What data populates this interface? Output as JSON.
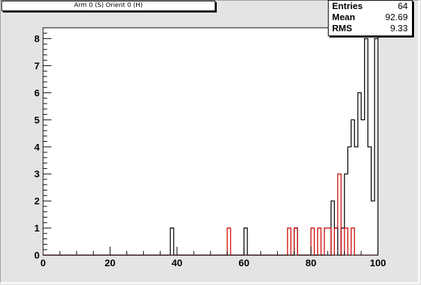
{
  "title": "Arm 0 (S) Orient 0 (H)",
  "stats": {
    "entries_label": "Entries",
    "entries_value": "64",
    "mean_label": "Mean",
    "mean_value": "92.69",
    "rms_label": "RMS",
    "rms_value": "9.33"
  },
  "colors": {
    "background": "#e4e4e4",
    "plot_background": "#ffffff",
    "series_black": "#000000",
    "series_red": "#cc0000"
  },
  "chart_data": {
    "type": "histogram",
    "title": "Arm 0 (S) Orient 0 (H)",
    "xlabel": "",
    "ylabel": "",
    "xlim": [
      0,
      100
    ],
    "ylim": [
      0,
      8.4
    ],
    "bin_width": 1,
    "grid": false,
    "x_ticks": [
      0,
      20,
      40,
      60,
      80,
      100
    ],
    "y_ticks": [
      0,
      1,
      2,
      3,
      4,
      5,
      6,
      7,
      8
    ],
    "series": [
      {
        "color": "#000000",
        "bins": [
          {
            "x": 38,
            "y": 1
          },
          {
            "x": 60,
            "y": 1
          },
          {
            "x": 75,
            "y": 1
          },
          {
            "x": 86,
            "y": 2
          },
          {
            "x": 87,
            "y": 1
          },
          {
            "x": 88,
            "y": 0
          },
          {
            "x": 89,
            "y": 1
          },
          {
            "x": 90,
            "y": 3
          },
          {
            "x": 91,
            "y": 4
          },
          {
            "x": 92,
            "y": 5
          },
          {
            "x": 93,
            "y": 4
          },
          {
            "x": 94,
            "y": 6
          },
          {
            "x": 95,
            "y": 5
          },
          {
            "x": 96,
            "y": 8
          },
          {
            "x": 97,
            "y": 4
          },
          {
            "x": 98,
            "y": 2
          },
          {
            "x": 99,
            "y": 8
          }
        ]
      },
      {
        "color": "#cc0000",
        "bins": [
          {
            "x": 55,
            "y": 1
          },
          {
            "x": 73,
            "y": 1
          },
          {
            "x": 74,
            "y": 0
          },
          {
            "x": 75,
            "y": 1
          },
          {
            "x": 80,
            "y": 1
          },
          {
            "x": 82,
            "y": 1
          },
          {
            "x": 84,
            "y": 1
          },
          {
            "x": 85,
            "y": 1
          },
          {
            "x": 87,
            "y": 1
          },
          {
            "x": 88,
            "y": 3
          },
          {
            "x": 90,
            "y": 1
          },
          {
            "x": 92,
            "y": 1
          }
        ]
      }
    ]
  }
}
